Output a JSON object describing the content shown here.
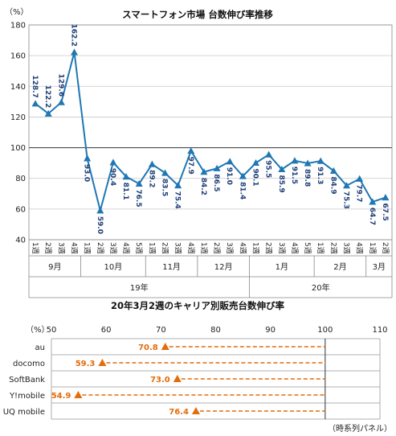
{
  "chart_data": [
    {
      "type": "line",
      "title": "スマートフォン市場 台数伸び率推移",
      "ylabel": "（%）",
      "ylim": [
        40,
        180
      ],
      "yticks": [
        40,
        60,
        80,
        100,
        120,
        140,
        160,
        180
      ],
      "grid": true,
      "color": "#1f77b4",
      "x": [
        "1週",
        "2週",
        "3週",
        "4週",
        "1週",
        "2週",
        "3週",
        "4週",
        "5週",
        "1週",
        "2週",
        "3週",
        "4週",
        "1週",
        "2週",
        "3週",
        "4週",
        "1週",
        "2週",
        "3週",
        "4週",
        "5週",
        "1週",
        "2週",
        "3週",
        "4週",
        "1週",
        "2週"
      ],
      "values": [
        128.7,
        122.2,
        129.6,
        162.2,
        93.0,
        59.0,
        90.4,
        81.1,
        76.5,
        89.2,
        83.5,
        75.4,
        97.9,
        84.2,
        86.5,
        91.0,
        81.4,
        90.1,
        95.5,
        85.9,
        91.5,
        89.8,
        91.3,
        84.9,
        75.3,
        79.7,
        64.7,
        67.5
      ],
      "months": [
        {
          "label": "9月",
          "count": 4
        },
        {
          "label": "10月",
          "count": 5
        },
        {
          "label": "11月",
          "count": 4
        },
        {
          "label": "12月",
          "count": 4
        },
        {
          "label": "1月",
          "count": 5
        },
        {
          "label": "2月",
          "count": 4
        },
        {
          "label": "3月",
          "count": 2
        }
      ],
      "years": [
        {
          "label": "19年",
          "count": 17
        },
        {
          "label": "20年",
          "count": 11
        }
      ]
    },
    {
      "type": "scatter",
      "title": "20年3月2週のキャリア別販売台数伸び率",
      "xlabel": "（%）",
      "xlim": [
        50,
        110
      ],
      "xticks": [
        50,
        60,
        70,
        80,
        90,
        100,
        110
      ],
      "baseline": 100,
      "color": "#e46c0a",
      "categories": [
        "au",
        "docomo",
        "SoftBank",
        "Y!mobile",
        "UQ mobile"
      ],
      "values": [
        70.8,
        59.3,
        73.0,
        54.9,
        76.4
      ],
      "note": "（時系列パネル）"
    }
  ]
}
